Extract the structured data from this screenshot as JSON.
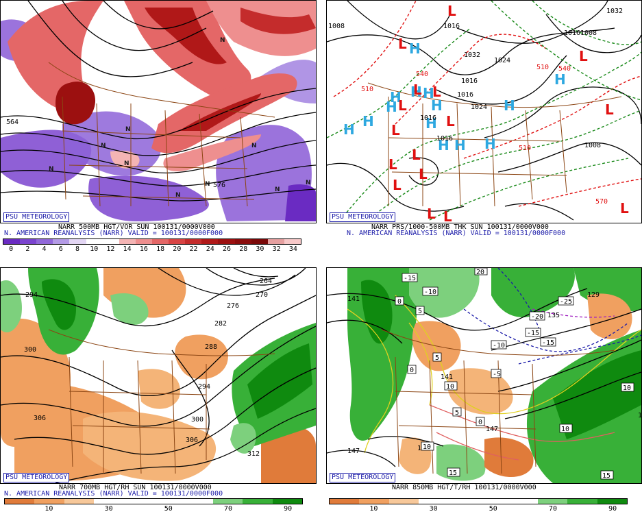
{
  "panels": [
    {
      "badge": "PSU METEOROLOGY",
      "caption_line1": "NARR 500MB HGT/VOR SUN 100131/0000V000",
      "caption_line2": "N. AMERICAN REANALYSIS (NARR) VALID = 100131/0000F000",
      "colorbar_ticks": [
        "0",
        "2",
        "4",
        "6",
        "8",
        "10",
        "12",
        "14",
        "16",
        "18",
        "20",
        "22",
        "24",
        "26",
        "28",
        "30",
        "32",
        "34"
      ],
      "colorbar_colors": [
        "#6a2bc2",
        "#7b44cf",
        "#9168d9",
        "#b49be6",
        "#e3d6f4",
        "#ffffff",
        "#ffffff",
        "#f4b4b4",
        "#ee8f8f",
        "#e46767",
        "#d84444",
        "#c42c2c",
        "#b01818",
        "#9c1010",
        "#8a0c0c",
        "#7a0808",
        "#e6a0a0",
        "#f7c8c8"
      ],
      "contour_labels": [
        "564",
        "576"
      ],
      "map_symbols": [
        {
          "t": "N"
        },
        {
          "t": "N"
        },
        {
          "t": "N"
        },
        {
          "t": "N"
        },
        {
          "t": "N"
        },
        {
          "t": "N"
        },
        {
          "t": "N"
        },
        {
          "t": "N"
        },
        {
          "t": "N"
        },
        {
          "t": "N"
        }
      ]
    },
    {
      "badge": "PSU METEOROLOGY",
      "caption_line1": "NARR PRS/1000-500MB THK SUN 100131/0000V000",
      "caption_line2": "N. AMERICAN REANALYSIS (NARR) VALID = 100131/0000F000",
      "pressure_labels": [
        "1008",
        "1016",
        "1024",
        "1032",
        "1016",
        "1016",
        "1024",
        "1016",
        "1008",
        "1016",
        "1008",
        "1032",
        "1016"
      ],
      "thickness_labels": [
        "510",
        "540",
        "510",
        "540",
        "570",
        "510"
      ],
      "highs": [
        "H",
        "H",
        "H",
        "H",
        "H",
        "H",
        "H",
        "H",
        "H",
        "H",
        "H",
        "H",
        "H",
        "H"
      ],
      "lows": [
        "L",
        "L",
        "L",
        "L",
        "L",
        "L",
        "L",
        "L",
        "L",
        "L",
        "L",
        "L",
        "L",
        "L",
        "L",
        "L"
      ]
    },
    {
      "badge": "PSU METEOROLOGY",
      "caption_line1": "NARR 700MB HGT/RH SUN 100131/0000V000",
      "caption_line2": "N. AMERICAN REANALYSIS (NARR) VALID = 100131/0000F000",
      "colorbar_ticks": [
        "10",
        "30",
        "50",
        "70",
        "90"
      ],
      "colorbar_colors": [
        "#e07b3a",
        "#f0a060",
        "#f7c89a",
        "#ffffff",
        "#ffffff",
        "#ffffff",
        "#ffffff",
        "#7dd07d",
        "#38b038",
        "#0f8a0f"
      ],
      "contour_labels": [
        "294",
        "300",
        "306",
        "312",
        "300",
        "306",
        "294",
        "288",
        "282",
        "276",
        "270",
        "264"
      ]
    },
    {
      "badge": "PSU METEOROLOGY",
      "caption_line1": "NARR 850MB HGT/T/RH 100131/0000V000",
      "colorbar_ticks": [
        "10",
        "30",
        "50",
        "70",
        "90"
      ],
      "colorbar_colors": [
        "#e07b3a",
        "#f0a060",
        "#f7c89a",
        "#ffffff",
        "#ffffff",
        "#ffffff",
        "#ffffff",
        "#7dd07d",
        "#38b038",
        "#0f8a0f"
      ],
      "height_labels": [
        "141",
        "135",
        "129",
        "147",
        "147",
        "147",
        "141",
        "15"
      ],
      "temp_labels": [
        "-15",
        "-10",
        "-10",
        "-15",
        "-15",
        "-25",
        "-20",
        "5",
        "5",
        "-5",
        "0",
        "0",
        "0",
        "5",
        "10",
        "10",
        "10",
        "15",
        "15",
        "10",
        "20"
      ]
    }
  ]
}
